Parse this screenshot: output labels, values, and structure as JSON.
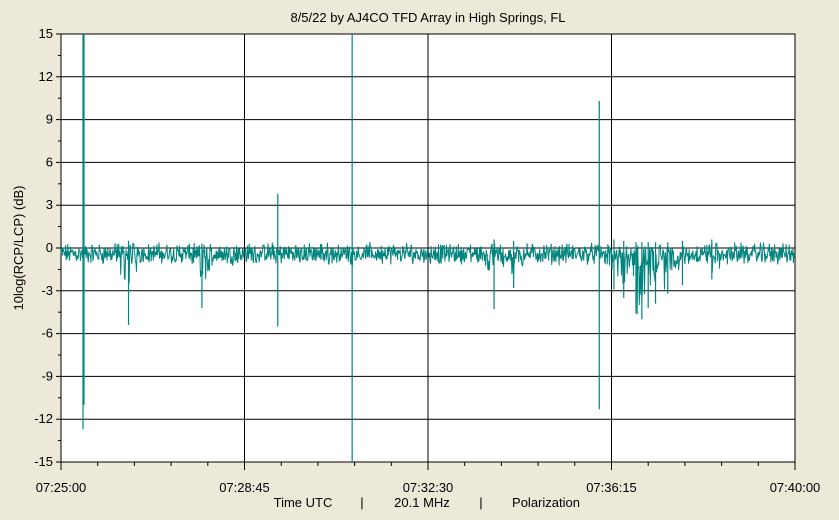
{
  "chart_data": {
    "type": "line",
    "title": "8/5/22  by  AJ4CO TFD Array  in  High Springs, FL",
    "ylabel": "10log(RCP/LCP) (dB)",
    "xlabel_parts": [
      "Time UTC",
      "|",
      "20.1 MHz",
      "|",
      "Polarization"
    ],
    "ylim": [
      -15,
      15
    ],
    "y_ticks": [
      15,
      12,
      9,
      6,
      3,
      0,
      -3,
      -6,
      -9,
      -12,
      -15
    ],
    "x_range_min": [
      0,
      15
    ],
    "x_ticks": [
      {
        "t": 0,
        "label": "07:25:00"
      },
      {
        "t": 3.75,
        "label": "07:28:45"
      },
      {
        "t": 7.5,
        "label": "07:32:30"
      },
      {
        "t": 11.25,
        "label": "07:36:15"
      },
      {
        "t": 15,
        "label": "07:40:00"
      }
    ],
    "grid": true,
    "series": [
      {
        "color": "#00847e",
        "baseline_db": -0.4,
        "noise_db": 0.55,
        "spikes": [
          {
            "t": 0.45,
            "min": -12.7,
            "max": 15
          },
          {
            "t": 0.47,
            "min": -11.0,
            "max": 15
          },
          {
            "t": 1.38,
            "min": -5.4,
            "max": 0.5
          },
          {
            "t": 2.88,
            "min": -4.2,
            "max": 0.3
          },
          {
            "t": 4.43,
            "min": -5.5,
            "max": 3.8
          },
          {
            "t": 5.95,
            "min": -15,
            "max": 15
          },
          {
            "t": 8.85,
            "min": -4.3,
            "max": 0.6
          },
          {
            "t": 9.25,
            "min": -2.8,
            "max": 0.5
          },
          {
            "t": 11.0,
            "min": -11.3,
            "max": 10.3
          },
          {
            "t": 11.3,
            "min": -2.9,
            "max": 0.6
          },
          {
            "t": 11.5,
            "min": -3.5,
            "max": 0.5
          },
          {
            "t": 11.75,
            "min": -4.6,
            "max": 0.4
          },
          {
            "t": 11.87,
            "min": -5.0,
            "max": 0.4
          },
          {
            "t": 12.0,
            "min": -4.2,
            "max": 0.4
          },
          {
            "t": 12.15,
            "min": -3.9,
            "max": 0.4
          },
          {
            "t": 12.4,
            "min": -3.2,
            "max": 0.4
          },
          {
            "t": 12.7,
            "min": -2.6,
            "max": 0.5
          },
          {
            "t": 13.3,
            "min": -2.2,
            "max": 0.6
          }
        ]
      }
    ]
  }
}
